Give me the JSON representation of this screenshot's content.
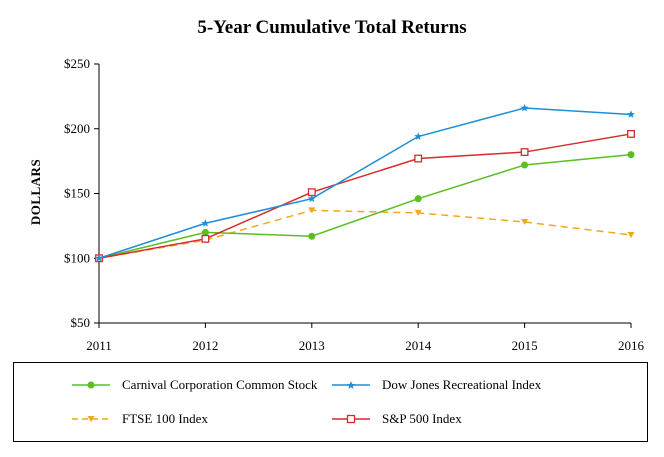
{
  "chart_data": {
    "type": "line",
    "title": "5-Year Cumulative Total Returns",
    "ylabel": "DOLLARS",
    "xlabel": "",
    "x": [
      "2011",
      "2012",
      "2013",
      "2014",
      "2015",
      "2016"
    ],
    "ylim": [
      50,
      250
    ],
    "yticks": [
      "$50",
      "$100",
      "$150",
      "$200",
      "$250"
    ],
    "ytick_values": [
      50,
      100,
      150,
      200,
      250
    ],
    "grid": false,
    "legend_placement": "bottom",
    "series": [
      {
        "name": "Carnival Corporation Common Stock",
        "values": [
          100,
          120,
          117,
          146,
          172,
          180
        ],
        "color": "#5bbf21",
        "marker": "circle",
        "dash": false
      },
      {
        "name": "Dow Jones Recreational Index",
        "values": [
          100,
          127,
          146,
          194,
          216,
          211
        ],
        "color": "#1c8fd8",
        "marker": "star",
        "dash": false
      },
      {
        "name": "FTSE 100 Index",
        "values": [
          100,
          114,
          137,
          135,
          128,
          118
        ],
        "color": "#f2a81d",
        "marker": "triangle-down",
        "dash": true
      },
      {
        "name": "S&P 500 Index",
        "values": [
          100,
          115,
          151,
          177,
          182,
          196
        ],
        "color": "#d42b2b",
        "marker": "square",
        "dash": false
      }
    ]
  }
}
